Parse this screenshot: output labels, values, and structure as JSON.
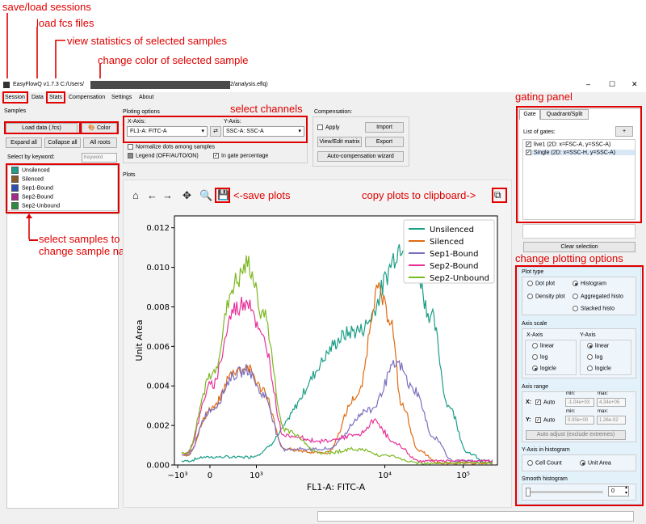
{
  "annotations": {
    "save_load_sessions": "save/load sessions",
    "load_fcs_files": "load fcs files",
    "view_statistics": "view statistics of selected samples",
    "change_color": "change color of selected sample",
    "select_channels": "select channels",
    "gating_panel": "gating panel",
    "save_plots": "<-save plots",
    "copy_plots": "copy plots to clipboard->",
    "select_samples_line1": "select samples to plot",
    "select_samples_line2": "change sample names (click again on text)",
    "change_plotting_options": "change plotting options"
  },
  "window": {
    "title_prefix": "EasyFlowQ v1.7.3 C:/Users/",
    "title_suffix": "2/analysis.eflq)",
    "min": "–",
    "max": "☐",
    "close": "✕"
  },
  "menu": [
    "Session",
    "Data",
    "Stats",
    "Compensation",
    "Settings",
    "About"
  ],
  "samples": {
    "header": "Samples",
    "load_data": "Load data (.fcs)",
    "color": "Color",
    "expand_all": "Expand all",
    "collapse_all": "Collapse all",
    "all_roots": "All roots",
    "keyword_label": "Select by keyword:",
    "keyword_placeholder": "Keyword",
    "list": [
      {
        "name": "Unsilenced",
        "color": "#1f9e89"
      },
      {
        "name": "Silenced",
        "color": "#8b5a2b"
      },
      {
        "name": "Sep1-Bound",
        "color": "#2f4fb0"
      },
      {
        "name": "Sep2-Bound",
        "color": "#a52a8a"
      },
      {
        "name": "Sep2-Unbound",
        "color": "#2e8b3e"
      }
    ]
  },
  "plotting": {
    "header": "Ploting options",
    "x_axis_label": "X-Axis:",
    "y_axis_label": "Y-Axis:",
    "x_channel": "FL1-A: FITC-A",
    "y_channel": "SSC-A: SSC-A",
    "swap": "⇄",
    "normalize": "Normalize dots among samples",
    "legend": "Legend (OFF/AUTO/ON)",
    "in_gate": "In gate percentage"
  },
  "compensation": {
    "header": "Compensation:",
    "apply": "Apply",
    "import": "Import",
    "view_edit": "View/Edit matrix",
    "export": "Export",
    "auto": "Auto-compensation wizard"
  },
  "plots_header": "Plots",
  "gating": {
    "tab_gate": "Gate",
    "tab_quadrant": "Quadrant/Split",
    "list_label": "List of gates:",
    "add": "+",
    "gates": [
      "live1 (2D: x=FSC-A, y=SSC-A)",
      "Single (2D: x=SSC-H, y=SSC-A)"
    ],
    "clear": "Clear selection"
  },
  "options": {
    "plot_type": "Plot type",
    "dot_plot": "Dot plot",
    "histogram": "Histogram",
    "density_plot": "Density plot",
    "aggregated": "Aggregated histo",
    "stacked": "Stacked histo",
    "axis_scale": "Axis scale",
    "x_axis": "X-Axis",
    "y_axis": "Y-Axis",
    "linear": "linear",
    "log": "log",
    "logicle": "logicle",
    "axis_range": "Axis range",
    "x_label": "X:",
    "y_label": "Y:",
    "auto": "Auto",
    "min": "min:",
    "max": "max:",
    "x_min": "-1.04e+03",
    "x_max": "4.34e+05",
    "y_min": "0.00e+00",
    "y_max": "1.26e-02",
    "auto_adjust": "Auto adjust (exclude extremes)",
    "y_hist": "Y-Axis in histogram",
    "cell_count": "Cell Count",
    "unit_area": "Unit Area",
    "smooth": "Smooth histogram",
    "smooth_value": "0"
  },
  "chart_data": {
    "type": "line",
    "xlabel": "FL1-A: FITC-A",
    "ylabel": "Unit Area",
    "x_tick_labels": [
      "−10³",
      "0",
      "10³",
      "10⁴",
      "10⁵"
    ],
    "y_tick_labels": [
      "0.000",
      "0.002",
      "0.004",
      "0.006",
      "0.008",
      "0.010",
      "0.012"
    ],
    "ylim": [
      0,
      0.0126
    ],
    "legend_position": "top-right",
    "series": [
      {
        "name": "Unsilenced",
        "color": "#1a9e86",
        "peaks": [
          [
            0.05,
            0.0002
          ],
          [
            0.125,
            0.0004
          ],
          [
            0.3,
            0.0004
          ],
          [
            0.75,
            0.0068
          ],
          [
            0.96,
            0.0115
          ],
          [
            1.05,
            0.0075
          ],
          [
            1.12,
            0.003
          ],
          [
            1.2,
            0.0006
          ],
          [
            1.28,
            0.0001
          ]
        ]
      },
      {
        "name": "Silenced",
        "color": "#e06a10",
        "peaks": [
          [
            0.05,
            0.0005
          ],
          [
            0.15,
            0.0028
          ],
          [
            0.25,
            0.0048
          ],
          [
            0.3,
            0.0049
          ],
          [
            0.36,
            0.0038
          ],
          [
            0.45,
            0.0008
          ],
          [
            0.62,
            0.0006
          ],
          [
            0.75,
            0.0035
          ],
          [
            0.83,
            0.0088
          ],
          [
            0.88,
            0.0075
          ],
          [
            0.93,
            0.003
          ],
          [
            1.0,
            0.0007
          ],
          [
            1.08,
            0.0001
          ]
        ]
      },
      {
        "name": "Sep1-Bound",
        "color": "#7b6fc0",
        "peaks": [
          [
            0.05,
            0.0005
          ],
          [
            0.15,
            0.0028
          ],
          [
            0.25,
            0.0046
          ],
          [
            0.3,
            0.0048
          ],
          [
            0.36,
            0.0036
          ],
          [
            0.45,
            0.0008
          ],
          [
            0.62,
            0.0008
          ],
          [
            0.8,
            0.0028
          ],
          [
            0.91,
            0.0051
          ],
          [
            0.98,
            0.0038
          ],
          [
            1.06,
            0.0014
          ],
          [
            1.14,
            0.0002
          ]
        ]
      },
      {
        "name": "Sep2-Bound",
        "color": "#e8329a",
        "peaks": [
          [
            0.05,
            0.0006
          ],
          [
            0.15,
            0.004
          ],
          [
            0.25,
            0.0079
          ],
          [
            0.3,
            0.0084
          ],
          [
            0.36,
            0.0064
          ],
          [
            0.45,
            0.0015
          ],
          [
            0.6,
            0.0012
          ],
          [
            0.75,
            0.0015
          ],
          [
            0.82,
            0.0022
          ],
          [
            0.9,
            0.0011
          ],
          [
            1.0,
            0.0002
          ]
        ]
      },
      {
        "name": "Sep2-Unbound",
        "color": "#7cb820",
        "peaks": [
          [
            0.05,
            0.0006
          ],
          [
            0.15,
            0.0045
          ],
          [
            0.25,
            0.0092
          ],
          [
            0.3,
            0.0101
          ],
          [
            0.36,
            0.0078
          ],
          [
            0.45,
            0.0018
          ],
          [
            0.6,
            0.0006
          ],
          [
            0.75,
            0.0008
          ],
          [
            0.85,
            0.0005
          ],
          [
            1.0,
            0.0001
          ]
        ]
      }
    ]
  }
}
